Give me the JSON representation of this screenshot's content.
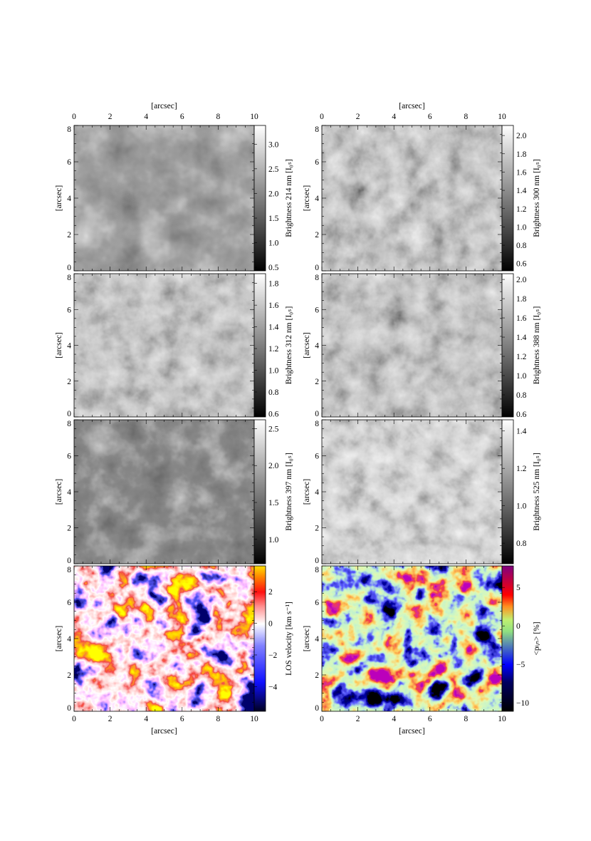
{
  "figure": {
    "axis_unit_label": "[arcsec]",
    "x_range": [
      0,
      10
    ],
    "y_range": [
      0,
      8
    ],
    "x_ticks": [
      0,
      2,
      4,
      6,
      8,
      10
    ],
    "y_ticks": [
      0,
      2,
      4,
      6,
      8
    ],
    "panels": [
      {
        "id": "214",
        "colorbar_label": "Brightness 214 nm [I₀ₛ]",
        "colormap": "gray",
        "range": [
          0.43,
          3.38
        ],
        "ticks": [
          0.5,
          1.0,
          1.5,
          2.0,
          2.5,
          3.0
        ],
        "tick_labels": [
          "0.5",
          "1.0",
          "1.5",
          "2.0",
          "2.5",
          "3.0"
        ]
      },
      {
        "id": "300",
        "colorbar_label": "Brightness 300 nm [I₀ₛ]",
        "colormap": "gray",
        "range": [
          0.52,
          2.11
        ],
        "ticks": [
          0.6,
          0.8,
          1.0,
          1.2,
          1.4,
          1.6,
          1.8,
          2.0
        ],
        "tick_labels": [
          "0.6",
          "0.8",
          "1.0",
          "1.2",
          "1.4",
          "1.6",
          "1.8",
          "2.0"
        ]
      },
      {
        "id": "312",
        "colorbar_label": "Brightness 312 nm [I₀ₛ]",
        "colormap": "gray",
        "range": [
          0.57,
          1.89
        ],
        "ticks": [
          0.6,
          0.8,
          1.0,
          1.2,
          1.4,
          1.6,
          1.8
        ],
        "tick_labels": [
          "0.6",
          "0.8",
          "1.0",
          "1.2",
          "1.4",
          "1.6",
          "1.8"
        ]
      },
      {
        "id": "388",
        "colorbar_label": "Brightness 388 nm [I₀ₛ]",
        "colormap": "gray",
        "range": [
          0.57,
          2.06
        ],
        "ticks": [
          0.6,
          0.8,
          1.0,
          1.2,
          1.4,
          1.6,
          1.8,
          2.0
        ],
        "tick_labels": [
          "0.6",
          "0.8",
          "1.0",
          "1.2",
          "1.4",
          "1.6",
          "1.8",
          "2.0"
        ]
      },
      {
        "id": "397",
        "colorbar_label": "Brightness 397 nm [I₀ₛ]",
        "colormap": "gray",
        "range": [
          0.67,
          2.62
        ],
        "ticks": [
          1.0,
          1.5,
          2.0,
          2.5
        ],
        "tick_labels": [
          "1.0",
          "1.5",
          "2.0",
          "2.5"
        ]
      },
      {
        "id": "525",
        "colorbar_label": "Brightness 525 nm [I₀ₛ]",
        "colormap": "gray",
        "range": [
          0.69,
          1.46
        ],
        "ticks": [
          0.8,
          1.0,
          1.2,
          1.4
        ],
        "tick_labels": [
          "0.8",
          "1.0",
          "1.2",
          "1.4"
        ]
      },
      {
        "id": "los",
        "colorbar_label": "LOS velocity [km s⁻¹]",
        "colormap": "blue-white-red-yellow",
        "range": [
          -5.56,
          3.63
        ],
        "ticks": [
          -4,
          -2,
          0,
          2
        ],
        "tick_labels": [
          "−4",
          "−2",
          "0",
          "2"
        ]
      },
      {
        "id": "pol",
        "colorbar_label": "<pₗᵢₙ> [%]",
        "colormap": "black-blue-green-red-purple",
        "range": [
          -11.1,
          7.8
        ],
        "ticks": [
          -10,
          -5,
          0,
          5
        ],
        "tick_labels": [
          "−10",
          "−5",
          "0",
          "5"
        ]
      }
    ]
  }
}
